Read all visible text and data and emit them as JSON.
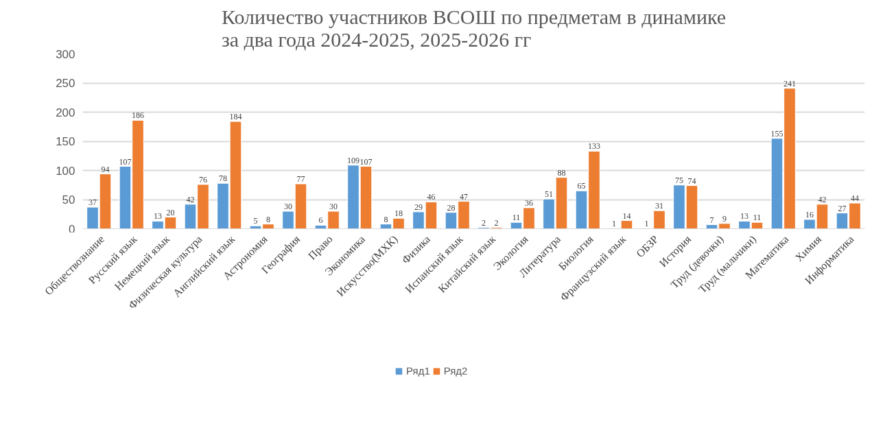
{
  "chart_data": {
    "type": "bar",
    "title": "Количество участников ВСОШ по предметам в динамике за два года 2024-2025, 2025-2026 гг",
    "categories": [
      "Обществознание",
      "Русский язык",
      "Немецкий язык",
      "Физическая культура",
      "Английский язык",
      "Астрономия",
      "География",
      "Право",
      "Экономика",
      "Искусство(МХК)",
      "Физика",
      "Испанский язык",
      "Китайский язык",
      "Экология",
      "Литература",
      "Биология",
      "Французский язык",
      "ОБЗР",
      "История",
      "Труд (девочки)",
      "Труд (мальчики)",
      "Математика",
      "Химия",
      "Информатика"
    ],
    "series": [
      {
        "name": "Ряд1",
        "color": "#5b9bd5",
        "values": [
          37,
          107,
          13,
          42,
          78,
          5,
          30,
          6,
          109,
          8,
          29,
          28,
          2,
          11,
          51,
          65,
          1,
          1,
          75,
          7,
          13,
          155,
          16,
          27
        ]
      },
      {
        "name": "Ряд2",
        "color": "#ed7d31",
        "values": [
          94,
          186,
          20,
          76,
          184,
          8,
          77,
          30,
          107,
          18,
          46,
          47,
          2,
          36,
          88,
          133,
          14,
          31,
          74,
          9,
          11,
          241,
          42,
          44
        ]
      }
    ],
    "ylim": [
      0,
      300
    ],
    "yticks": [
      0,
      50,
      100,
      150,
      200,
      250,
      300
    ],
    "grid": "y",
    "legend": "bottom",
    "data_labels": true
  }
}
